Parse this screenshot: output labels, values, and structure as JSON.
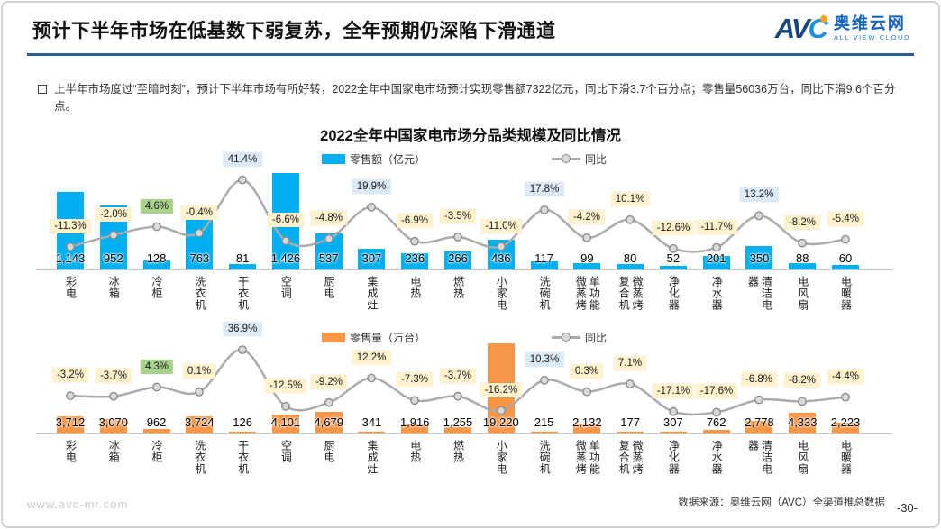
{
  "header": {
    "title": "预计下半年市场在低基数下弱复苏，全年预期仍深陷下滑通道",
    "logo": {
      "abbr_av": "AV",
      "abbr_c": "C",
      "name_cn": "奥维云网",
      "name_en": "ALL VIEW CLOUD"
    }
  },
  "summary": "上半年市场度过“至暗时刻”，预计下半年市场有所好转，2022全年中国家电市场预计实现零售额7322亿元，同比下滑3.7个百分点；零售量56036万台，同比下滑9.6个百分点。",
  "chart_title": "2022全年中国家电市场分品类规模及同比情况",
  "colors": {
    "bar_blue": "#00B0F0",
    "bar_orange": "#F79646",
    "line_gray": "#ABABAB",
    "marker_fill": "#D9D9D9",
    "marker_stroke": "#8C8C8C",
    "label_cream_bg": "#FFF2CC",
    "label_blue_bg": "#DCE9F7",
    "label_green_bg": "#A9D18E",
    "header_rule_blue": "#2B5C9C"
  },
  "chart_data": [
    {
      "type": "bar",
      "categories": [
        "彩电",
        "冰箱",
        "冷柜",
        "洗衣机",
        "干衣机",
        "空调",
        "厨电",
        "集成灶",
        "电热",
        "燃热",
        "小家电",
        "洗碗机",
        "单功能微蒸烤",
        "微蒸烤复合机",
        "净化器",
        "净水器",
        "清洁电器",
        "电风扇",
        "电暖器"
      ],
      "legend": [
        "零售额（亿元）",
        "同比"
      ],
      "ylim": [
        0,
        1460
      ],
      "grid": false,
      "legend_position": "top",
      "series": [
        {
          "name": "零售额（亿元）",
          "type": "bar",
          "values": [
            1143,
            952,
            128,
            763,
            81,
            1426,
            537,
            307,
            236,
            266,
            436,
            117,
            99,
            80,
            52,
            201,
            350,
            88,
            60
          ],
          "labels": [
            "1,143",
            "952",
            "128",
            "763",
            "81",
            "1,426",
            "537",
            "307",
            "236",
            "266",
            "436",
            "117",
            "99",
            "80",
            "52",
            "201",
            "350",
            "88",
            "60"
          ]
        },
        {
          "name": "同比",
          "type": "line",
          "unit": "%",
          "values": [
            -11.3,
            -2.0,
            4.6,
            -0.4,
            41.4,
            -6.6,
            -4.8,
            19.9,
            -6.9,
            -3.5,
            -11.0,
            17.8,
            -4.2,
            10.1,
            -12.6,
            -11.7,
            13.2,
            -8.2,
            -5.4
          ],
          "labels": [
            "-11.3%",
            "-2.0%",
            "4.6%",
            "-0.4%",
            "41.4%",
            "-6.6%",
            "-4.8%",
            "19.9%",
            "-6.9%",
            "-3.5%",
            "-11.0%",
            "17.8%",
            "-4.2%",
            "10.1%",
            "-12.6%",
            "-11.7%",
            "13.2%",
            "-8.2%",
            "-5.4%"
          ],
          "label_styles": [
            "cream",
            "cream",
            "green",
            "cream",
            "blue",
            "cream",
            "cream",
            "blue",
            "cream",
            "cream",
            "cream",
            "blue",
            "cream",
            "cream",
            "cream",
            "cream",
            "blue",
            "cream",
            "cream"
          ]
        }
      ]
    },
    {
      "type": "bar",
      "categories": [
        "彩电",
        "冰箱",
        "冷柜",
        "洗衣机",
        "干衣机",
        "空调",
        "厨电",
        "集成灶",
        "电热",
        "燃热",
        "小家电",
        "洗碗机",
        "单功能微蒸烤",
        "微蒸烤复合机",
        "净化器",
        "净水器",
        "清洁电器",
        "电风扇",
        "电暖器"
      ],
      "legend": [
        "零售量（万台）",
        "同比"
      ],
      "ylim": [
        0,
        19300
      ],
      "grid": false,
      "legend_position": "top",
      "series": [
        {
          "name": "零售量（万台）",
          "type": "bar",
          "values": [
            3712,
            3070,
            962,
            3724,
            126,
            4101,
            4679,
            341,
            1916,
            1255,
            19220,
            215,
            2132,
            177,
            307,
            762,
            2778,
            4333,
            2223
          ],
          "labels": [
            "3,712",
            "3,070",
            "962",
            "3,724",
            "126",
            "4,101",
            "4,679",
            "341",
            "1,916",
            "1,255",
            "19,220",
            "215",
            "2,132",
            "177",
            "307",
            "762",
            "2,778",
            "4,333",
            "2,223"
          ]
        },
        {
          "name": "同比",
          "type": "line",
          "unit": "%",
          "values": [
            -3.2,
            -3.7,
            4.3,
            0.1,
            36.9,
            -12.5,
            -9.2,
            12.2,
            -7.3,
            -3.7,
            -16.2,
            10.3,
            0.3,
            7.1,
            -17.1,
            -17.6,
            -6.8,
            -8.2,
            -4.4
          ],
          "labels": [
            "-3.2%",
            "-3.7%",
            "4.3%",
            "0.1%",
            "36.9%",
            "-12.5%",
            "-9.2%",
            "12.2%",
            "-7.3%",
            "-3.7%",
            "-16.2%",
            "10.3%",
            "0.3%",
            "7.1%",
            "-17.1%",
            "-17.6%",
            "-6.8%",
            "-8.2%",
            "-4.4%"
          ],
          "label_styles": [
            "cream",
            "cream",
            "green",
            "cream",
            "blue",
            "cream",
            "cream",
            "cream",
            "cream",
            "cream",
            "cream",
            "blue",
            "cream",
            "cream",
            "cream",
            "cream",
            "cream",
            "cream",
            "cream"
          ]
        }
      ]
    }
  ],
  "footer": {
    "website": "www.avc-mr.com",
    "source": "数据来源：奥维云网（AVC）全渠道推总数据",
    "page": "-30-"
  }
}
